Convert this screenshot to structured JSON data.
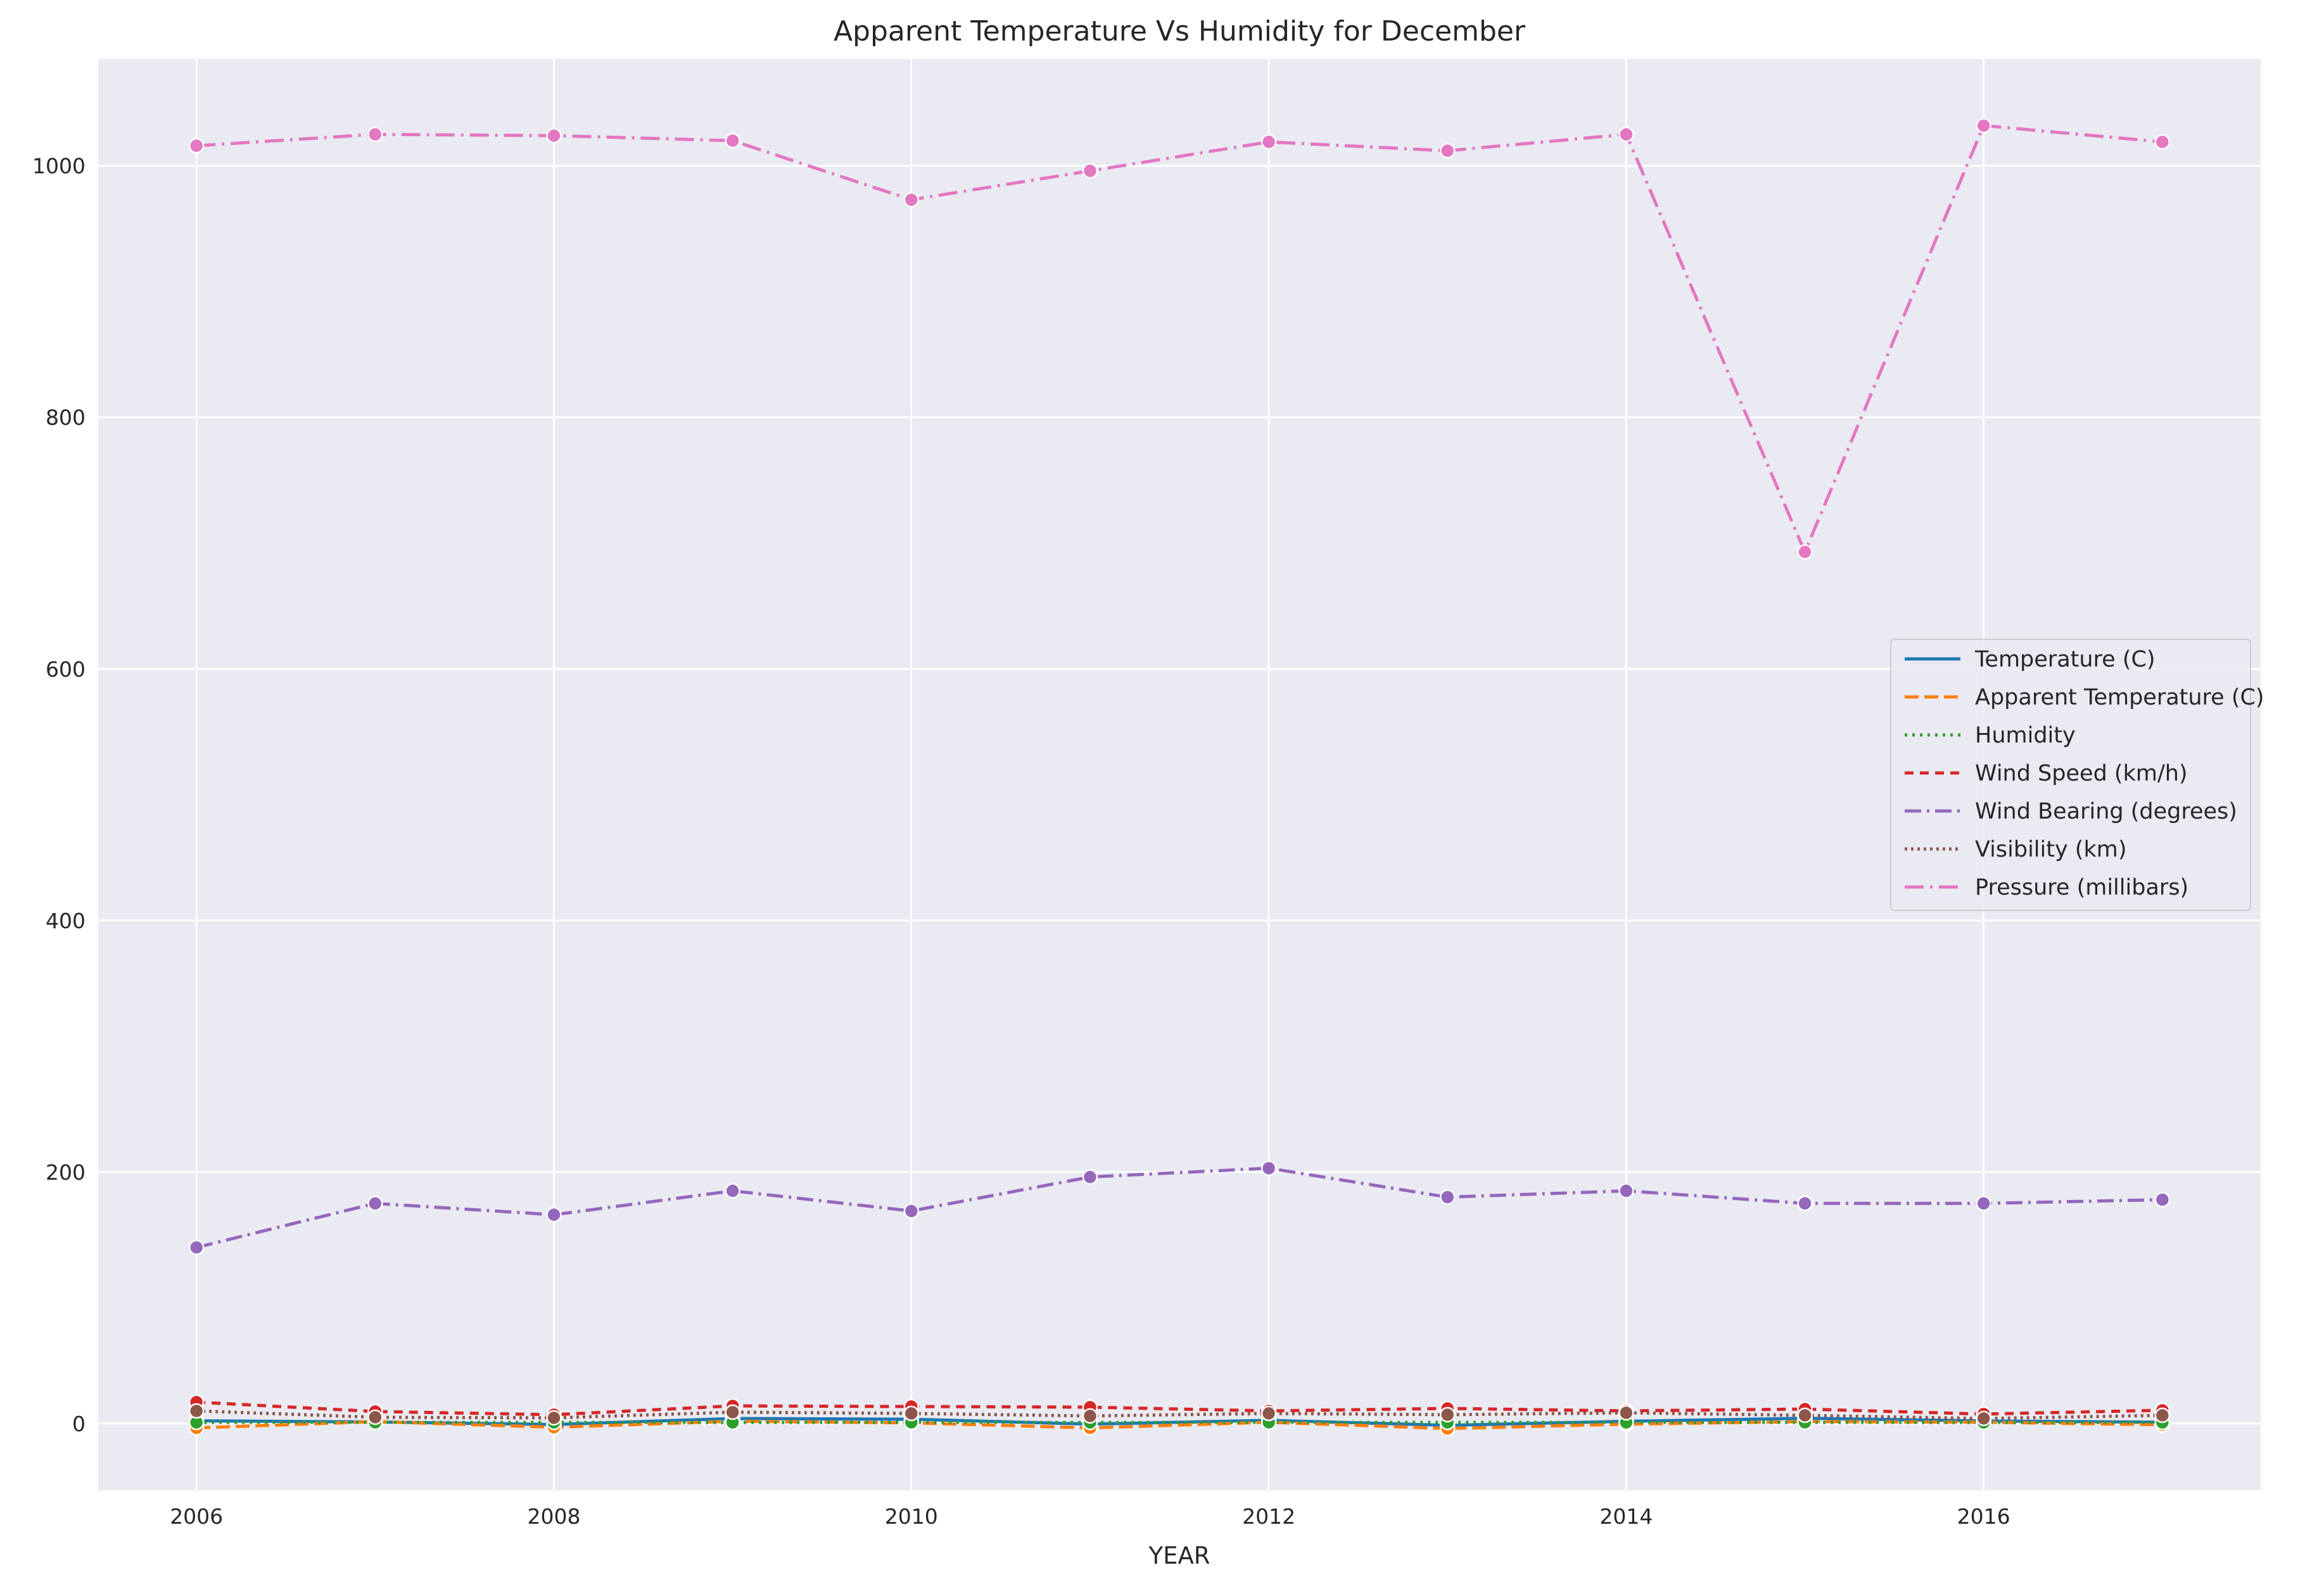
{
  "chart_data": {
    "type": "line",
    "title": "Apparent Temperature Vs Humidity for December",
    "xlabel": "YEAR",
    "ylabel": "",
    "x": [
      2006,
      2007,
      2008,
      2009,
      2010,
      2011,
      2012,
      2013,
      2014,
      2015,
      2016,
      2017
    ],
    "xlim": [
      2005.45,
      2017.55
    ],
    "ylim": [
      -53,
      1085
    ],
    "xticks": [
      2006,
      2008,
      2010,
      2012,
      2014,
      2016
    ],
    "yticks": [
      0,
      200,
      400,
      600,
      800,
      1000
    ],
    "grid": true,
    "background": "#eaeaf2",
    "legend_position": "center-right",
    "series": [
      {
        "name": "Temperature (C)",
        "color": "#1f77b4",
        "dash": "solid",
        "values": [
          2.1,
          1.2,
          -0.8,
          4.0,
          3.4,
          -0.5,
          2.5,
          -1.4,
          1.7,
          4.2,
          2.0,
          1.0
        ]
      },
      {
        "name": "Apparent Temperature (C)",
        "color": "#ff7f0e",
        "dash": "dashed",
        "values": [
          -3.5,
          1.5,
          -3.0,
          1.8,
          0.5,
          -3.5,
          1.0,
          -4.0,
          -0.5,
          1.5,
          1.0,
          -1.0
        ]
      },
      {
        "name": "Humidity",
        "color": "#2ca02c",
        "dash": "dotted",
        "values": [
          0.85,
          0.88,
          0.86,
          0.85,
          0.9,
          0.87,
          0.89,
          0.86,
          0.88,
          0.9,
          0.87,
          0.86
        ]
      },
      {
        "name": "Wind Speed (km/h)",
        "color": "#d62728",
        "dash": "dashdash",
        "values": [
          17.0,
          9.5,
          7.0,
          14.0,
          13.5,
          13.0,
          10.0,
          12.0,
          10.0,
          11.5,
          7.5,
          10.5
        ]
      },
      {
        "name": "Wind Bearing (degrees)",
        "color": "#9467bd",
        "dash": "dashdot",
        "values": [
          140,
          175,
          166,
          185,
          169,
          196,
          203,
          180,
          185,
          175,
          175,
          178
        ]
      },
      {
        "name": "Visibility (km)",
        "color": "#8c564b",
        "dash": "finedot",
        "values": [
          10.0,
          5.0,
          4.5,
          9.0,
          8.0,
          6.0,
          8.0,
          7.0,
          8.5,
          6.5,
          4.0,
          6.5
        ]
      },
      {
        "name": "Pressure (millibars)",
        "color": "#e377c2",
        "dash": "longdashdot",
        "values": [
          1016,
          1025,
          1024,
          1020,
          973,
          996,
          1019,
          1012,
          1025,
          693,
          1032,
          1019
        ]
      }
    ]
  }
}
